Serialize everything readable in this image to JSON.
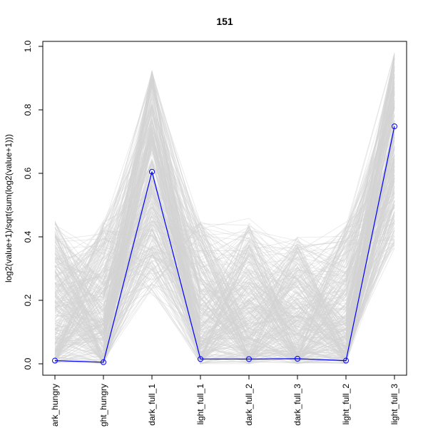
{
  "chart_data": {
    "type": "line",
    "title": "151",
    "xlabel": "",
    "ylabel": "log2(value+1)/sqrt(sum(log2(value+1)))",
    "categories": [
      "dark_hungry",
      "light_hungry",
      "dark_full_1",
      "light_full_1",
      "dark_full_2",
      "dark_full_3",
      "light_full_2",
      "light_full_3"
    ],
    "category_labels_visible": [
      "ark_hungry",
      "ght_hungry",
      "dark_full_1",
      "light_full_1",
      "dark_full_2",
      "dark_full_3",
      "light_full_2",
      "light_full_3"
    ],
    "ylim": [
      0,
      1.0
    ],
    "yticks": [
      0.0,
      0.2,
      0.4,
      0.6,
      0.8,
      1.0
    ],
    "ytick_labels": [
      "0.0",
      "0.2",
      "0.4",
      "0.6",
      "0.8",
      "1.0"
    ],
    "grid": false,
    "background_series": {
      "color": "#d3d3d3",
      "description_ranges": {
        "min": [
          0.0,
          0.0,
          0.21,
          0.0,
          0.0,
          0.0,
          0.0,
          0.36
        ],
        "max": [
          0.45,
          0.45,
          0.93,
          0.45,
          0.46,
          0.4,
          0.45,
          0.98
        ]
      }
    },
    "series": [
      {
        "color": "#0000ff",
        "marker": "open-circle",
        "values": [
          0.01,
          0.005,
          0.605,
          0.015,
          0.015,
          0.016,
          0.01,
          0.748
        ]
      }
    ]
  }
}
